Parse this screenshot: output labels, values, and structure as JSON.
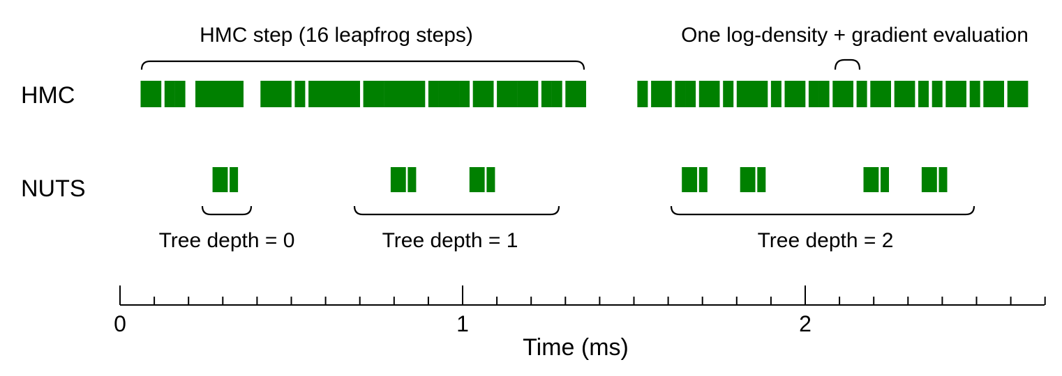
{
  "row_labels": {
    "hmc": "HMC",
    "nuts": "NUTS"
  },
  "annotations": {
    "hmc_step": "HMC step (16 leapfrog steps)",
    "gradient_eval": "One log-density + gradient evaluation",
    "tree_depth_0": "Tree depth = 0",
    "tree_depth_1": "Tree depth = 1",
    "tree_depth_2": "Tree depth = 2"
  },
  "axis": {
    "title": "Time (ms)",
    "range": [
      0,
      2.7
    ],
    "major_ticks": [
      0,
      1,
      2
    ],
    "major_tick_labels": [
      "0",
      "1",
      "2"
    ],
    "minor_step": 0.1
  },
  "colors": {
    "evaluation": "#008000",
    "ink": "#000000"
  },
  "events": {
    "hmc_ms": [
      0.06,
      0.09,
      0.13,
      0.16,
      0.22,
      0.25,
      0.28,
      0.3,
      0.33,
      0.41,
      0.44,
      0.47,
      0.51,
      0.55,
      0.58,
      0.61,
      0.64,
      0.67,
      0.71,
      0.74,
      0.77,
      0.8,
      0.83,
      0.86,
      0.9,
      0.93,
      0.96,
      0.99,
      1.03,
      1.06,
      1.1,
      1.13,
      1.16,
      1.19,
      1.23,
      1.26,
      1.3,
      1.33,
      1.51,
      1.55,
      1.58,
      1.62,
      1.65,
      1.69,
      1.72,
      1.76,
      1.8,
      1.83,
      1.86,
      1.9,
      1.94,
      1.97,
      2.01,
      2.04,
      2.08,
      2.11,
      2.15,
      2.19,
      2.22,
      2.26,
      2.29,
      2.33,
      2.37,
      2.41,
      2.44,
      2.48,
      2.52,
      2.55,
      2.59,
      2.62
    ],
    "nuts_ms": [
      0.27,
      0.29,
      0.32,
      0.79,
      0.81,
      0.84,
      1.02,
      1.04,
      1.07,
      1.64,
      1.66,
      1.69,
      1.81,
      1.83,
      1.86,
      2.17,
      2.19,
      2.22,
      2.34,
      2.36,
      2.39
    ]
  }
}
